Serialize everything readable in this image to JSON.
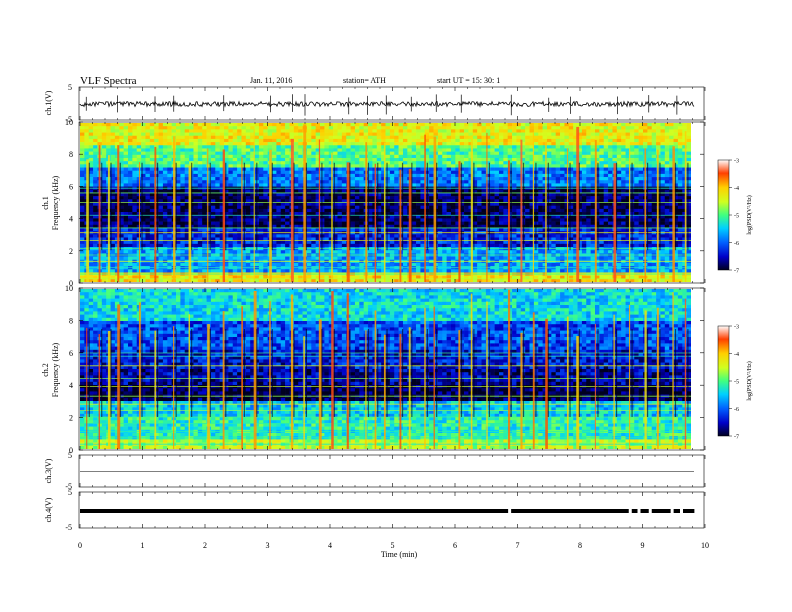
{
  "header": {
    "title": "VLF  Spectra",
    "date": "Jan. 11, 2016",
    "station": "station= ATH",
    "start": "start  UT  =    15: 30: 1"
  },
  "chart_data": [
    {
      "type": "line",
      "id": "ch1-waveform",
      "ylabel": "ch.1(V)",
      "ylim": [
        -5,
        5
      ],
      "ytick_labels": [
        "5",
        "-5"
      ],
      "x_unit": "min",
      "xlim": [
        0,
        10
      ],
      "description_data": {
        "baseline": 0,
        "spike_times": [
          0.1,
          0.6,
          1.2,
          1.5,
          2.3,
          3.05,
          3.4,
          3.6,
          4.3,
          4.6,
          4.9,
          5.3,
          5.7,
          6.1,
          6.9,
          7.5,
          7.85,
          8.6,
          9.1,
          9.55
        ]
      }
    },
    {
      "type": "heatmap",
      "id": "ch1-spectrogram",
      "ylabel": "ch.1",
      "ylabel2": "Frequency  (kHz)",
      "ylim": [
        0,
        10
      ],
      "yticks": [
        0,
        2,
        4,
        6,
        8,
        10
      ],
      "xlim": [
        0,
        9.85
      ],
      "colorbar": {
        "label": "log(PSD(V²/Hz)",
        "range": [
          -7,
          -3
        ],
        "ticks": [
          "-3",
          "-4",
          "-5",
          "-6",
          "-7"
        ]
      },
      "bands": [
        {
          "from": 0,
          "to": 0.6,
          "level": -4.2
        },
        {
          "from": 0.6,
          "to": 2.2,
          "level": -5.7
        },
        {
          "from": 2.2,
          "to": 3.4,
          "level": -6.3
        },
        {
          "from": 3.4,
          "to": 6.0,
          "level": -6.8
        },
        {
          "from": 6.0,
          "to": 7.2,
          "level": -5.9
        },
        {
          "from": 7.2,
          "to": 8.6,
          "level": -5.0
        },
        {
          "from": 8.6,
          "to": 10,
          "level": -4.3
        }
      ],
      "lines_khz": [
        0.2,
        0.5,
        0.9,
        1.3,
        1.7,
        2.1,
        2.6,
        3.1,
        3.4,
        4.2,
        5.0,
        5.6,
        5.9
      ],
      "sferic_times": [
        0.1,
        0.3,
        0.45,
        0.6,
        0.95,
        1.2,
        1.5,
        1.75,
        2.05,
        2.3,
        2.6,
        2.8,
        3.05,
        3.4,
        3.6,
        3.85,
        4.05,
        4.3,
        4.6,
        4.75,
        4.9,
        5.15,
        5.3,
        5.55,
        5.7,
        6.1,
        6.3,
        6.55,
        6.9,
        7.1,
        7.3,
        7.5,
        7.85,
        8.0,
        8.3,
        8.6,
        8.85,
        9.1,
        9.3,
        9.55,
        9.75
      ]
    },
    {
      "type": "heatmap",
      "id": "ch2-spectrogram",
      "ylabel": "ch.2",
      "ylabel2": "Frequency  (kHz)",
      "ylim": [
        0,
        10
      ],
      "yticks": [
        0,
        2,
        4,
        6,
        8,
        10
      ],
      "xlim": [
        0,
        9.85
      ],
      "colorbar": {
        "label": "log(PSD(V²/Hz)",
        "range": [
          -7,
          -3
        ],
        "ticks": [
          "-3",
          "-4",
          "-5",
          "-6",
          "-7"
        ]
      },
      "bands": [
        {
          "from": 0,
          "to": 0.6,
          "level": -4.6
        },
        {
          "from": 0.6,
          "to": 2.0,
          "level": -5.2
        },
        {
          "from": 2.0,
          "to": 3.0,
          "level": -5.5
        },
        {
          "from": 3.0,
          "to": 4.0,
          "level": -6.9
        },
        {
          "from": 4.0,
          "to": 5.0,
          "level": -6.6
        },
        {
          "from": 5.0,
          "to": 6.2,
          "level": -6.4
        },
        {
          "from": 6.2,
          "to": 8.0,
          "level": -6.1
        },
        {
          "from": 8.0,
          "to": 10,
          "level": -5.4
        }
      ],
      "lines_khz": [
        0.3,
        0.7,
        1.1,
        1.6,
        2.0,
        2.4,
        2.8,
        3.3,
        3.9,
        4.4,
        5.2,
        5.8,
        6.0
      ],
      "sferic_times": [
        0.1,
        0.3,
        0.45,
        0.6,
        0.95,
        1.2,
        1.5,
        1.75,
        2.05,
        2.3,
        2.6,
        2.8,
        3.05,
        3.4,
        3.6,
        3.85,
        4.05,
        4.3,
        4.6,
        4.75,
        4.9,
        5.15,
        5.3,
        5.55,
        5.7,
        6.1,
        6.3,
        6.55,
        6.9,
        7.1,
        7.3,
        7.5,
        7.85,
        8.0,
        8.3,
        8.6,
        8.85,
        9.1,
        9.3,
        9.55,
        9.75
      ]
    },
    {
      "type": "line",
      "id": "ch3-waveform",
      "ylabel": "ch.3(V)",
      "ylim": [
        -5,
        5
      ],
      "ytick_labels": [
        "5",
        "-5"
      ],
      "xlim": [
        0,
        10
      ],
      "description_data": {
        "baseline": 0
      }
    },
    {
      "type": "line",
      "id": "ch4-waveform",
      "ylabel": "ch.4(V)",
      "ylim": [
        -5,
        5
      ],
      "ytick_labels": [
        "5",
        "-5"
      ],
      "xlim": [
        0,
        10
      ],
      "description_data": {
        "baseline": 0,
        "gap_times": [
          6.85,
          8.78,
          8.92,
          9.1,
          9.45,
          9.6
        ]
      }
    }
  ],
  "xaxis": {
    "label": "Time  (min)",
    "ticks": [
      0,
      1,
      2,
      3,
      4,
      5,
      6,
      7,
      8,
      9,
      10
    ],
    "tick_labels": [
      "0",
      "1",
      "2",
      "3",
      "4",
      "5",
      "6",
      "7",
      "8",
      "9",
      "10"
    ]
  },
  "colors": {
    "scale": [
      "#000020",
      "#0000c8",
      "#0060ff",
      "#00d0ff",
      "#40ff80",
      "#d0ff20",
      "#ffd000",
      "#ff4000",
      "#ffffff"
    ]
  }
}
